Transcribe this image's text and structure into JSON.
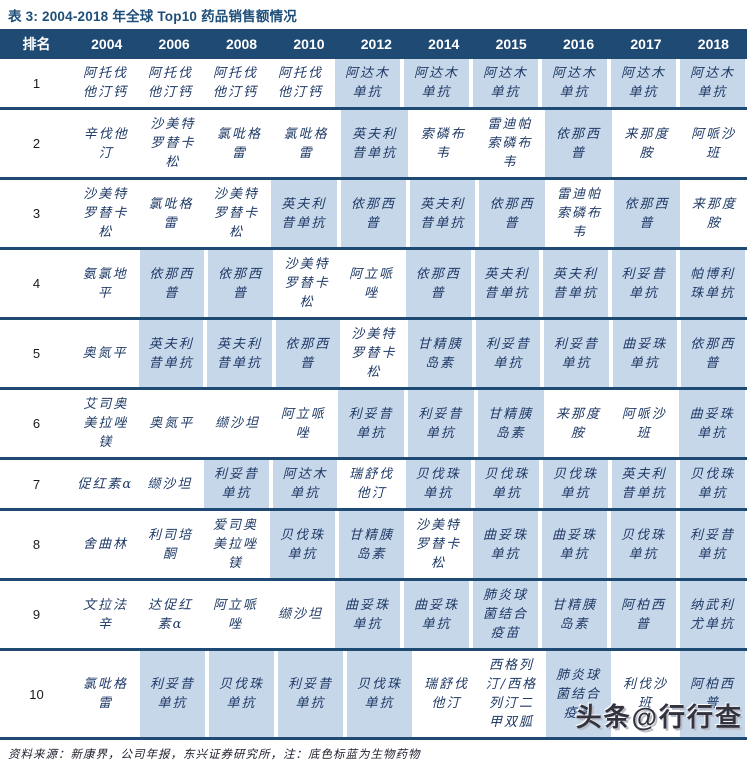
{
  "title": "表 3: 2004-2018 年全球 Top10 药品销售额情况",
  "footer_note": "资料来源：新康界，公司年报，东兴证券研究所，注：底色标蓝为生物药物",
  "watermark": "头条@行行查",
  "colors": {
    "header_bg": "#1F4A73",
    "title_text": "#1F4E79",
    "highlight_biologic": "#C7D7EA",
    "cell_text": "#1F3A66"
  },
  "table": {
    "headers": [
      "排名",
      "2004",
      "2006",
      "2008",
      "2010",
      "2012",
      "2014",
      "2015",
      "2016",
      "2017",
      "2018"
    ],
    "highlight_legend": "底色标蓝为生物药物",
    "rows": [
      {
        "rank": "1",
        "cells": [
          {
            "text": "阿托伐他汀钙",
            "hl": false
          },
          {
            "text": "阿托伐他汀钙",
            "hl": false
          },
          {
            "text": "阿托伐他汀钙",
            "hl": false
          },
          {
            "text": "阿托伐他汀钙",
            "hl": false
          },
          {
            "text": "阿达木单抗",
            "hl": true
          },
          {
            "text": "阿达木单抗",
            "hl": true
          },
          {
            "text": "阿达木单抗",
            "hl": true
          },
          {
            "text": "阿达木单抗",
            "hl": true
          },
          {
            "text": "阿达木单抗",
            "hl": true
          },
          {
            "text": "阿达木单抗",
            "hl": true
          }
        ]
      },
      {
        "rank": "2",
        "cells": [
          {
            "text": "辛伐他汀",
            "hl": false
          },
          {
            "text": "沙美特罗替卡松",
            "hl": false
          },
          {
            "text": "氯吡格雷",
            "hl": false
          },
          {
            "text": "氯吡格雷",
            "hl": false
          },
          {
            "text": "英夫利昔单抗",
            "hl": true
          },
          {
            "text": "索磷布韦",
            "hl": false
          },
          {
            "text": "雷迪帕索磷布韦",
            "hl": false
          },
          {
            "text": "依那西普",
            "hl": true
          },
          {
            "text": "来那度胺",
            "hl": false
          },
          {
            "text": "阿哌沙班",
            "hl": false
          }
        ]
      },
      {
        "rank": "3",
        "cells": [
          {
            "text": "沙美特罗替卡松",
            "hl": false
          },
          {
            "text": "氯吡格雷",
            "hl": false
          },
          {
            "text": "沙美特罗替卡松",
            "hl": false
          },
          {
            "text": "英夫利昔单抗",
            "hl": true
          },
          {
            "text": "依那西普",
            "hl": true
          },
          {
            "text": "英夫利昔单抗",
            "hl": true
          },
          {
            "text": "依那西普",
            "hl": true
          },
          {
            "text": "雷迪帕索磷布韦",
            "hl": false
          },
          {
            "text": "依那西普",
            "hl": true
          },
          {
            "text": "来那度胺",
            "hl": false
          }
        ]
      },
      {
        "rank": "4",
        "cells": [
          {
            "text": "氨氯地平",
            "hl": false
          },
          {
            "text": "依那西普",
            "hl": true
          },
          {
            "text": "依那西普",
            "hl": true
          },
          {
            "text": "沙美特罗替卡松",
            "hl": false
          },
          {
            "text": "阿立哌唑",
            "hl": false
          },
          {
            "text": "依那西普",
            "hl": true
          },
          {
            "text": "英夫利昔单抗",
            "hl": true
          },
          {
            "text": "英夫利昔单抗",
            "hl": true
          },
          {
            "text": "利妥昔单抗",
            "hl": true
          },
          {
            "text": "帕博利珠单抗",
            "hl": true
          }
        ]
      },
      {
        "rank": "5",
        "cells": [
          {
            "text": "奥氮平",
            "hl": false
          },
          {
            "text": "英夫利昔单抗",
            "hl": true
          },
          {
            "text": "英夫利昔单抗",
            "hl": true
          },
          {
            "text": "依那西普",
            "hl": true
          },
          {
            "text": "沙美特罗替卡松",
            "hl": false
          },
          {
            "text": "甘精胰岛素",
            "hl": true
          },
          {
            "text": "利妥昔单抗",
            "hl": true
          },
          {
            "text": "利妥昔单抗",
            "hl": true
          },
          {
            "text": "曲妥珠单抗",
            "hl": true
          },
          {
            "text": "依那西普",
            "hl": true
          }
        ]
      },
      {
        "rank": "6",
        "cells": [
          {
            "text": "艾司奥美拉唑镁",
            "hl": false
          },
          {
            "text": "奥氮平",
            "hl": false
          },
          {
            "text": "缬沙坦",
            "hl": false
          },
          {
            "text": "阿立哌唑",
            "hl": false
          },
          {
            "text": "利妥昔单抗",
            "hl": true
          },
          {
            "text": "利妥昔单抗",
            "hl": true
          },
          {
            "text": "甘精胰岛素",
            "hl": true
          },
          {
            "text": "来那度胺",
            "hl": false
          },
          {
            "text": "阿哌沙班",
            "hl": false
          },
          {
            "text": "曲妥珠单抗",
            "hl": true
          }
        ]
      },
      {
        "rank": "7",
        "cells": [
          {
            "text": "促红素α",
            "hl": false
          },
          {
            "text": "缬沙坦",
            "hl": false
          },
          {
            "text": "利妥昔单抗",
            "hl": true
          },
          {
            "text": "阿达木单抗",
            "hl": true
          },
          {
            "text": "瑞舒伐他汀",
            "hl": false
          },
          {
            "text": "贝伐珠单抗",
            "hl": true
          },
          {
            "text": "贝伐珠单抗",
            "hl": true
          },
          {
            "text": "贝伐珠单抗",
            "hl": true
          },
          {
            "text": "英夫利昔单抗",
            "hl": true
          },
          {
            "text": "贝伐珠单抗",
            "hl": true
          }
        ]
      },
      {
        "rank": "8",
        "cells": [
          {
            "text": "舍曲林",
            "hl": false
          },
          {
            "text": "利司培酮",
            "hl": false
          },
          {
            "text": "爱司奥美拉唑镁",
            "hl": false
          },
          {
            "text": "贝伐珠单抗",
            "hl": true
          },
          {
            "text": "甘精胰岛素",
            "hl": true
          },
          {
            "text": "沙美特罗替卡松",
            "hl": false
          },
          {
            "text": "曲妥珠单抗",
            "hl": true
          },
          {
            "text": "曲妥珠单抗",
            "hl": true
          },
          {
            "text": "贝伐珠单抗",
            "hl": true
          },
          {
            "text": "利妥昔单抗",
            "hl": true
          }
        ]
      },
      {
        "rank": "9",
        "cells": [
          {
            "text": "文拉法辛",
            "hl": false
          },
          {
            "text": "达促红素α",
            "hl": false
          },
          {
            "text": "阿立哌唑",
            "hl": false
          },
          {
            "text": "缬沙坦",
            "hl": false
          },
          {
            "text": "曲妥珠单抗",
            "hl": true
          },
          {
            "text": "曲妥珠单抗",
            "hl": true
          },
          {
            "text": "肺炎球菌结合疫苗",
            "hl": true
          },
          {
            "text": "甘精胰岛素",
            "hl": true
          },
          {
            "text": "阿柏西普",
            "hl": true
          },
          {
            "text": "纳武利尤单抗",
            "hl": true
          }
        ]
      },
      {
        "rank": "10",
        "cells": [
          {
            "text": "氯吡格雷",
            "hl": false
          },
          {
            "text": "利妥昔单抗",
            "hl": true
          },
          {
            "text": "贝伐珠单抗",
            "hl": true
          },
          {
            "text": "利妥昔单抗",
            "hl": true
          },
          {
            "text": "贝伐珠单抗",
            "hl": true
          },
          {
            "text": "瑞舒伐他汀",
            "hl": false
          },
          {
            "text": "西格列汀/西格列汀二甲双胍",
            "hl": false
          },
          {
            "text": "肺炎球菌结合疫苗",
            "hl": true
          },
          {
            "text": "利伐沙班",
            "hl": false
          },
          {
            "text": "阿柏西普",
            "hl": true
          }
        ]
      }
    ]
  }
}
